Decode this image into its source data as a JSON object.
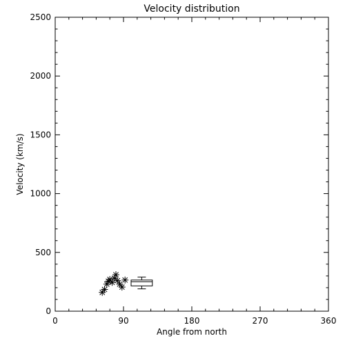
{
  "chart_data": {
    "type": "scatter",
    "title": "Velocity distribution",
    "xlabel": "Angle from north",
    "ylabel": "Velocity (km/s)",
    "xlim": [
      0,
      360
    ],
    "ylim": [
      0,
      2500
    ],
    "xticks": [
      0,
      90,
      180,
      270,
      360
    ],
    "yticks": [
      0,
      500,
      1000,
      1500,
      2000,
      2500
    ],
    "xtick_labels": [
      "0",
      "90",
      "180",
      "270",
      "360"
    ],
    "ytick_labels": [
      "0",
      "500",
      "1000",
      "1500",
      "2000",
      "2500"
    ],
    "grid": false,
    "series": [
      {
        "marker": "asterisk",
        "x": [
          62,
          65,
          68,
          70,
          72,
          75,
          78,
          80,
          82,
          85,
          88,
          92
        ],
        "y": [
          160,
          185,
          230,
          255,
          270,
          245,
          280,
          310,
          260,
          230,
          205,
          265
        ]
      }
    ],
    "boxplot": {
      "x_range": [
        100,
        128
      ],
      "q1": 215,
      "median": 250,
      "q3": 265,
      "whisker_low": 190,
      "whisker_high": 290
    }
  }
}
